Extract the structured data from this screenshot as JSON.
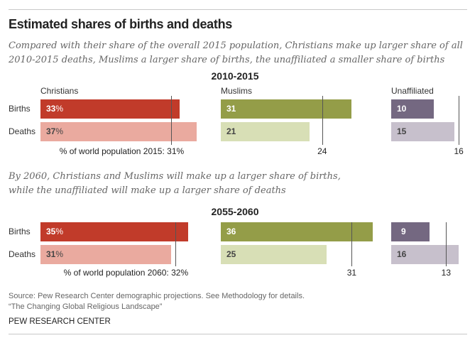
{
  "title": "Estimated shares of births and deaths",
  "subtitle1_line1": "Compared with their share of the overall 2015 population, Christians make up larger share of all",
  "subtitle1_line2": "2010-2015 deaths, Muslims a larger share of births, the unaffiliated a smaller share of births",
  "subtitle2_line1": "By 2060, Christians and Muslims will make up a larger share of births,",
  "subtitle2_line2": "while the unaffiliated will make up a larger share of deaths",
  "source_line1": "Source: Pew Research Center demographic projections. See Methodology for details.",
  "source_line2": "“The Changing Global Religious Landscape”",
  "brand": "PEW RESEARCH CENTER",
  "chart_data": [
    {
      "type": "bar",
      "orientation": "horizontal",
      "title": "2010-2015",
      "row_labels": [
        "Births",
        "Deaths"
      ],
      "groups": [
        {
          "name": "Christians",
          "births": 33,
          "deaths": 37,
          "population_share": 31,
          "births_label": "33",
          "deaths_label": "37",
          "suffix": "%",
          "ref_label": "% of world population 2015: 31%",
          "colors": {
            "births": "#C13B2A",
            "deaths": "#EAAA9F",
            "births_text": "#ffffff",
            "deaths_text": "#444444"
          }
        },
        {
          "name": "Muslims",
          "births": 31,
          "deaths": 21,
          "population_share": 24,
          "births_label": "31",
          "deaths_label": "21",
          "suffix": "",
          "ref_label": "24",
          "colors": {
            "births": "#949D48",
            "deaths": "#D8DFB6",
            "births_text": "#ffffff",
            "deaths_text": "#444444"
          }
        },
        {
          "name": "Unaffiliated",
          "births": 10,
          "deaths": 15,
          "population_share": 16,
          "births_label": "10",
          "deaths_label": "15",
          "suffix": "",
          "ref_label": "16",
          "colors": {
            "births": "#746881",
            "deaths": "#C7C0CC",
            "births_text": "#ffffff",
            "deaths_text": "#444444"
          }
        }
      ]
    },
    {
      "type": "bar",
      "orientation": "horizontal",
      "title": "2055-2060",
      "row_labels": [
        "Births",
        "Deaths"
      ],
      "groups": [
        {
          "name": "Christians",
          "births": 35,
          "deaths": 31,
          "population_share": 32,
          "births_label": "35",
          "deaths_label": "31",
          "suffix": "%",
          "ref_label": "% of world population 2060: 32%",
          "colors": {
            "births": "#C13B2A",
            "deaths": "#EAAA9F",
            "births_text": "#ffffff",
            "deaths_text": "#444444"
          }
        },
        {
          "name": "Muslims",
          "births": 36,
          "deaths": 25,
          "population_share": 31,
          "births_label": "36",
          "deaths_label": "25",
          "suffix": "",
          "ref_label": "31",
          "colors": {
            "births": "#949D48",
            "deaths": "#D8DFB6",
            "births_text": "#ffffff",
            "deaths_text": "#444444"
          }
        },
        {
          "name": "Unaffiliated",
          "births": 9,
          "deaths": 16,
          "population_share": 13,
          "births_label": "9",
          "deaths_label": "16",
          "suffix": "",
          "ref_label": "13",
          "colors": {
            "births": "#746881",
            "deaths": "#C7C0CC",
            "births_text": "#ffffff",
            "deaths_text": "#444444"
          }
        }
      ]
    }
  ]
}
